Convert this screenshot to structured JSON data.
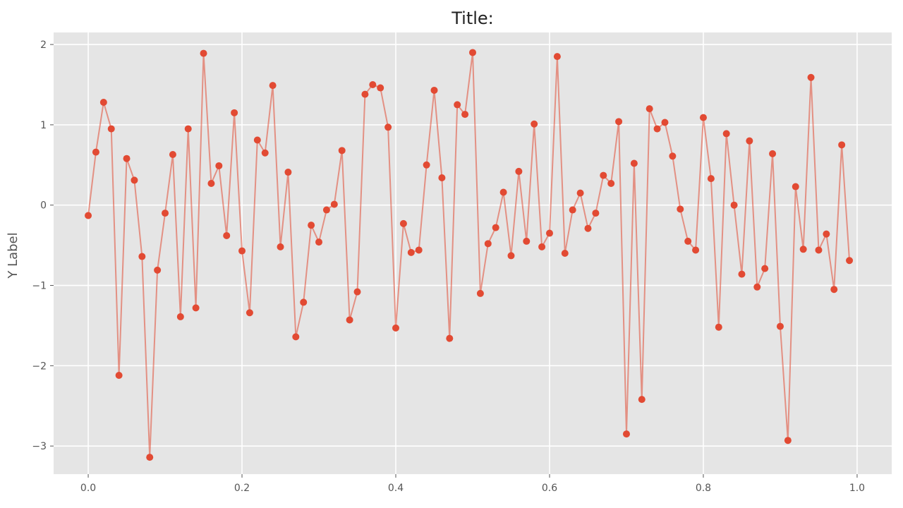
{
  "chart_data": {
    "type": "line",
    "title": "Title:",
    "xlabel": "",
    "ylabel": "Y Label",
    "xlim": [
      -0.045,
      1.045
    ],
    "ylim": [
      -3.35,
      2.15
    ],
    "xticks": [
      0.0,
      0.2,
      0.4,
      0.6,
      0.8,
      1.0
    ],
    "xtick_labels": [
      "0.0",
      "0.2",
      "0.4",
      "0.6",
      "0.8",
      "1.0"
    ],
    "yticks": [
      2,
      1,
      0,
      -1,
      -2,
      -3
    ],
    "ytick_labels": [
      "2",
      "1",
      "0",
      "−1",
      "−2",
      "−3"
    ],
    "grid": true,
    "colors": {
      "plot_background": "#e5e5e5",
      "grid": "#ffffff",
      "series": "#e24a33"
    },
    "series": [
      {
        "x": [
          0.0,
          0.01,
          0.02,
          0.03,
          0.04,
          0.05,
          0.06,
          0.07,
          0.08,
          0.09,
          0.1,
          0.11,
          0.12,
          0.13,
          0.14,
          0.15,
          0.16,
          0.17,
          0.18,
          0.19,
          0.2,
          0.21,
          0.22,
          0.23,
          0.24,
          0.25,
          0.26,
          0.27,
          0.28,
          0.29,
          0.3,
          0.31,
          0.32,
          0.33,
          0.34,
          0.35,
          0.36,
          0.37,
          0.38,
          0.39,
          0.4,
          0.41,
          0.42,
          0.43,
          0.44,
          0.45,
          0.46,
          0.47,
          0.48,
          0.49,
          0.5,
          0.51,
          0.52,
          0.53,
          0.54,
          0.55,
          0.56,
          0.57,
          0.58,
          0.59,
          0.6,
          0.61,
          0.62,
          0.63,
          0.64,
          0.65,
          0.66,
          0.67,
          0.68,
          0.69,
          0.7,
          0.71,
          0.72,
          0.73,
          0.74,
          0.75,
          0.76,
          0.77,
          0.78,
          0.79,
          0.8,
          0.81,
          0.82,
          0.83,
          0.84,
          0.85,
          0.86,
          0.87,
          0.88,
          0.89,
          0.9,
          0.91,
          0.92,
          0.93,
          0.94,
          0.95,
          0.96,
          0.97,
          0.98,
          0.99
        ],
        "values": [
          -0.13,
          0.66,
          1.28,
          0.95,
          -2.12,
          0.58,
          0.31,
          -0.64,
          -3.14,
          -0.81,
          -0.1,
          0.63,
          -1.39,
          0.95,
          -1.28,
          1.89,
          0.27,
          0.49,
          -0.38,
          1.15,
          -0.57,
          -1.34,
          0.81,
          0.65,
          1.49,
          -0.52,
          0.41,
          -1.64,
          -1.21,
          -0.25,
          -0.46,
          -0.06,
          0.01,
          0.68,
          -1.43,
          -1.08,
          1.38,
          1.5,
          1.46,
          0.97,
          -1.53,
          -0.23,
          -0.59,
          -0.56,
          0.5,
          1.43,
          0.34,
          -1.66,
          1.25,
          1.13,
          1.9,
          -1.1,
          -0.48,
          -0.28,
          0.16,
          -0.63,
          0.42,
          -0.45,
          1.01,
          -0.52,
          -0.35,
          1.85,
          -0.6,
          -0.06,
          0.15,
          -0.29,
          -0.1,
          0.37,
          0.27,
          1.04,
          -2.85,
          0.52,
          -2.42,
          1.2,
          0.95,
          1.03,
          0.61,
          -0.05,
          -0.45,
          -0.56,
          1.09,
          0.33,
          -1.52,
          0.89,
          0.0,
          -0.86,
          0.8,
          -1.02,
          -0.79,
          0.64,
          -1.51,
          -2.93,
          0.23,
          -0.55,
          1.59,
          -0.56,
          -0.36,
          -1.05,
          0.75,
          -0.69
        ]
      }
    ]
  }
}
